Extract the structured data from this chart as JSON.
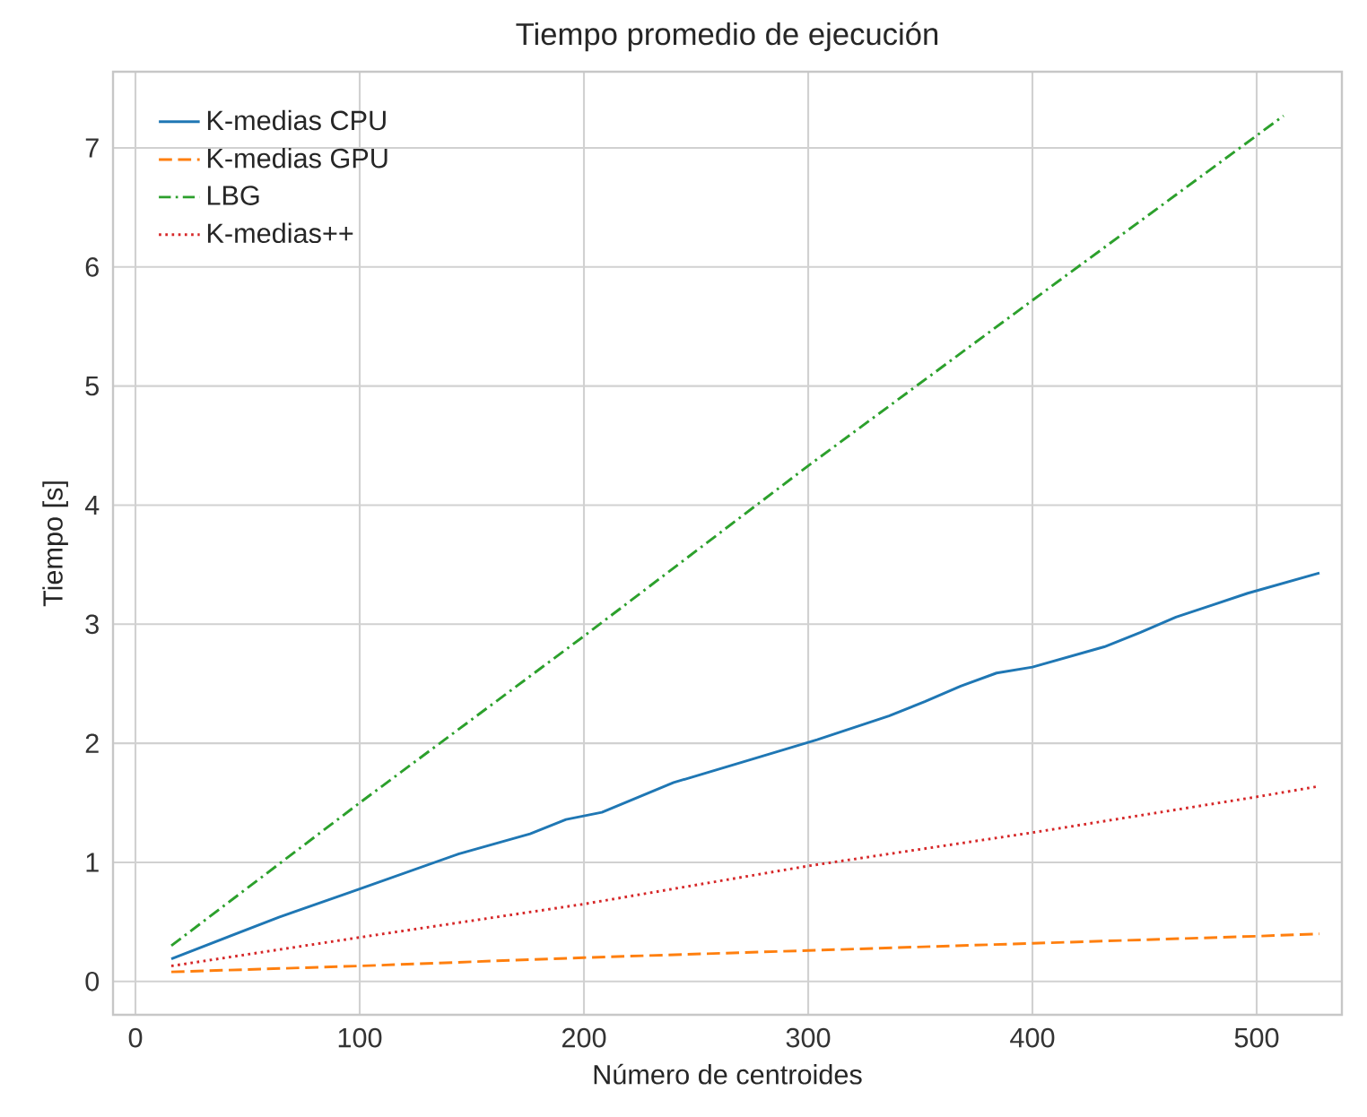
{
  "chart_data": {
    "type": "line",
    "title": "Tiempo promedio de ejecución",
    "xlabel": "Número de centroides",
    "ylabel": "Tiempo [s]",
    "xlim": [
      -10,
      538
    ],
    "ylim": [
      -0.28,
      7.64
    ],
    "xticks": [
      0,
      100,
      200,
      300,
      400,
      500
    ],
    "yticks": [
      0,
      1,
      2,
      3,
      4,
      5,
      6,
      7
    ],
    "grid": true,
    "legend": "top left",
    "marker": "none",
    "series": [
      {
        "name": "K-medias CPU",
        "color": "#1f77b4",
        "line_style": "solid",
        "x": [
          16,
          64,
          96,
          144,
          176,
          192,
          208,
          240,
          272,
          304,
          336,
          352,
          368,
          384,
          400,
          432,
          448,
          464,
          480,
          496,
          528
        ],
        "values": [
          0.19,
          0.54,
          0.75,
          1.07,
          1.24,
          1.36,
          1.42,
          1.67,
          1.85,
          2.03,
          2.23,
          2.35,
          2.48,
          2.59,
          2.64,
          2.81,
          2.93,
          3.06,
          3.16,
          3.26,
          3.43
        ]
      },
      {
        "name": "K-medias GPU",
        "color": "#ff7f0e",
        "line_style": "dashed",
        "x": [
          16,
          100,
          200,
          300,
          400,
          500,
          528
        ],
        "values": [
          0.08,
          0.13,
          0.2,
          0.26,
          0.32,
          0.38,
          0.4
        ]
      },
      {
        "name": "LBG",
        "color": "#2ca02c",
        "line_style": "dashdot",
        "x": [
          16,
          100,
          200,
          300,
          400,
          512
        ],
        "values": [
          0.3,
          1.5,
          2.9,
          4.33,
          5.72,
          7.27
        ]
      },
      {
        "name": "K-medias++",
        "color": "#d62728",
        "line_style": "dotted",
        "x": [
          16,
          100,
          200,
          300,
          400,
          500,
          528
        ],
        "values": [
          0.13,
          0.37,
          0.65,
          0.97,
          1.25,
          1.55,
          1.64
        ]
      }
    ]
  }
}
